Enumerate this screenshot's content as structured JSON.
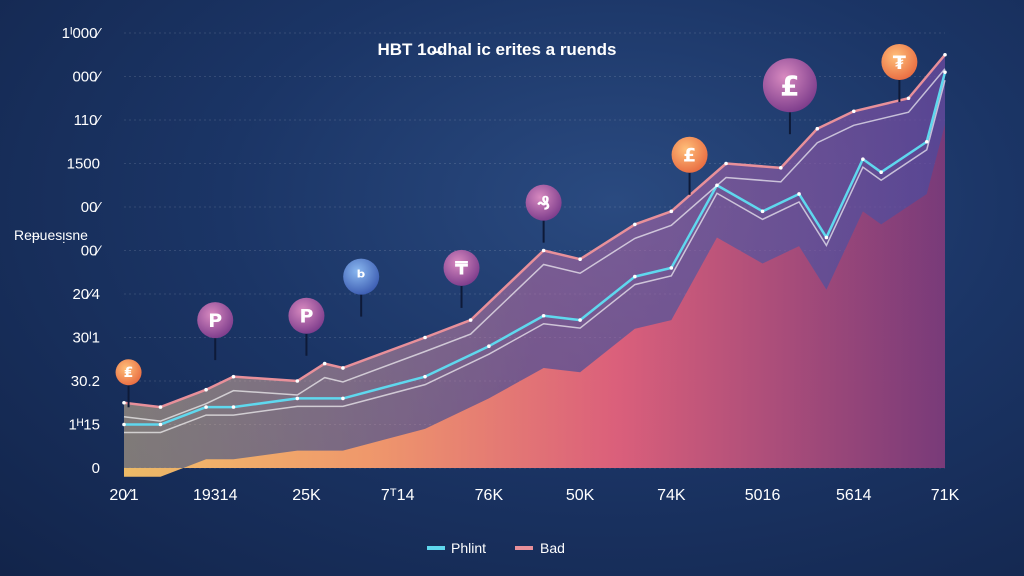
{
  "chart_data": {
    "type": "area",
    "title": "HBT 1o̶dhal ic erites a ruends",
    "ylabel": "Reᵽuesᴉsne",
    "xlabel": "",
    "categories": [
      "20⁄1",
      "19314",
      "25K",
      "7ᵀ14",
      "76K",
      "50K",
      "74K",
      "5016",
      "5614",
      "71K"
    ],
    "y_tick_labels": [
      "0",
      "1ᴴ15",
      "30.2",
      "30ᴵ1",
      "20⁄4",
      "00⁄",
      "00⁄",
      "1500",
      "110⁄",
      "000⁄",
      "1ᴵ000⁄"
    ],
    "ylim": [
      0,
      10
    ],
    "grid": true,
    "legend_position": "bottom-center",
    "legend": [
      {
        "name": "Phlint",
        "color": "#5fd8ee"
      },
      {
        "name": "Bad",
        "color": "#e8909a"
      }
    ],
    "series": [
      {
        "name": "Phlint",
        "color": "#5fd8ee",
        "x": [
          0,
          0.4,
          0.9,
          1.2,
          1.9,
          2.4,
          3.3,
          4,
          4.6,
          5,
          5.6,
          6,
          6.5,
          7,
          7.4,
          7.7,
          8.1,
          8.3,
          8.8,
          9
        ],
        "y": [
          1.0,
          1.0,
          1.4,
          1.4,
          1.6,
          1.6,
          2.1,
          2.8,
          3.5,
          3.4,
          4.4,
          4.6,
          6.5,
          5.9,
          6.3,
          5.3,
          7.1,
          6.8,
          7.5,
          9.1
        ]
      },
      {
        "name": "Bad",
        "color": "#e8909a",
        "x": [
          0,
          0.4,
          0.9,
          1.2,
          1.9,
          2.2,
          2.4,
          3.3,
          3.8,
          4.6,
          5,
          5.6,
          6,
          6.6,
          7.2,
          7.6,
          8,
          8.6,
          9
        ],
        "y": [
          1.5,
          1.4,
          1.8,
          2.1,
          2.0,
          2.4,
          2.3,
          3.0,
          3.4,
          5.0,
          4.8,
          5.6,
          5.9,
          7.0,
          6.9,
          7.8,
          8.2,
          8.5,
          9.5
        ]
      }
    ],
    "markers": [
      {
        "symbol": "₤",
        "x": 0.05,
        "y": 2.2,
        "color": "#f4a262"
      },
      {
        "symbol": "P",
        "x": 1.0,
        "y": 3.4,
        "color": "#c066a8"
      },
      {
        "symbol": "P",
        "x": 2.0,
        "y": 3.5,
        "color": "#8a5aa8"
      },
      {
        "symbol": "ᵇ",
        "x": 2.6,
        "y": 4.4,
        "color": "#4a7ad0"
      },
      {
        "symbol": "₸",
        "x": 3.7,
        "y": 4.6,
        "color": "#c066a8"
      },
      {
        "symbol": "₰",
        "x": 4.6,
        "y": 6.1,
        "color": "#8a5aa8"
      },
      {
        "symbol": "£",
        "x": 6.2,
        "y": 7.2,
        "color": "#f08a50"
      },
      {
        "symbol": "£",
        "x": 7.3,
        "y": 8.8,
        "color": "#a8508a"
      },
      {
        "symbol": "₮",
        "x": 8.5,
        "y": 10.2,
        "color": "#f08a50"
      }
    ]
  }
}
